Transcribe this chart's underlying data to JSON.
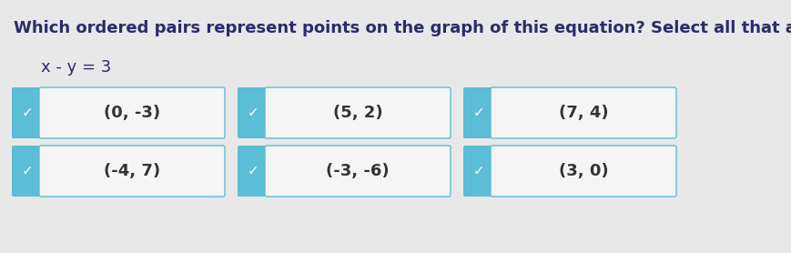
{
  "title": "Which ordered pairs represent points on the graph of this equation? Select all that apply.",
  "equation": "x - y = 3",
  "background_color": "#e8e8e8",
  "options": [
    {
      "label": "(0, -3)",
      "selected": true,
      "row": 0,
      "col": 0
    },
    {
      "label": "(5, 2)",
      "selected": true,
      "row": 0,
      "col": 1
    },
    {
      "label": "(7, 4)",
      "selected": true,
      "row": 0,
      "col": 2
    },
    {
      "label": "(-4, 7)",
      "selected": true,
      "row": 1,
      "col": 0
    },
    {
      "label": "(-3, -6)",
      "selected": true,
      "row": 1,
      "col": 1
    },
    {
      "label": "(3, 0)",
      "selected": true,
      "row": 1,
      "col": 2
    }
  ],
  "tab_color": "#5bbdd6",
  "box_face_color": "#f5f5f5",
  "box_edge_color": "#5bbdd6",
  "check_color": "#ffffff",
  "title_color": "#2b2b6b",
  "equation_color": "#2b2b6b",
  "label_color": "#333333",
  "title_fontsize": 13,
  "equation_fontsize": 13,
  "label_fontsize": 13
}
